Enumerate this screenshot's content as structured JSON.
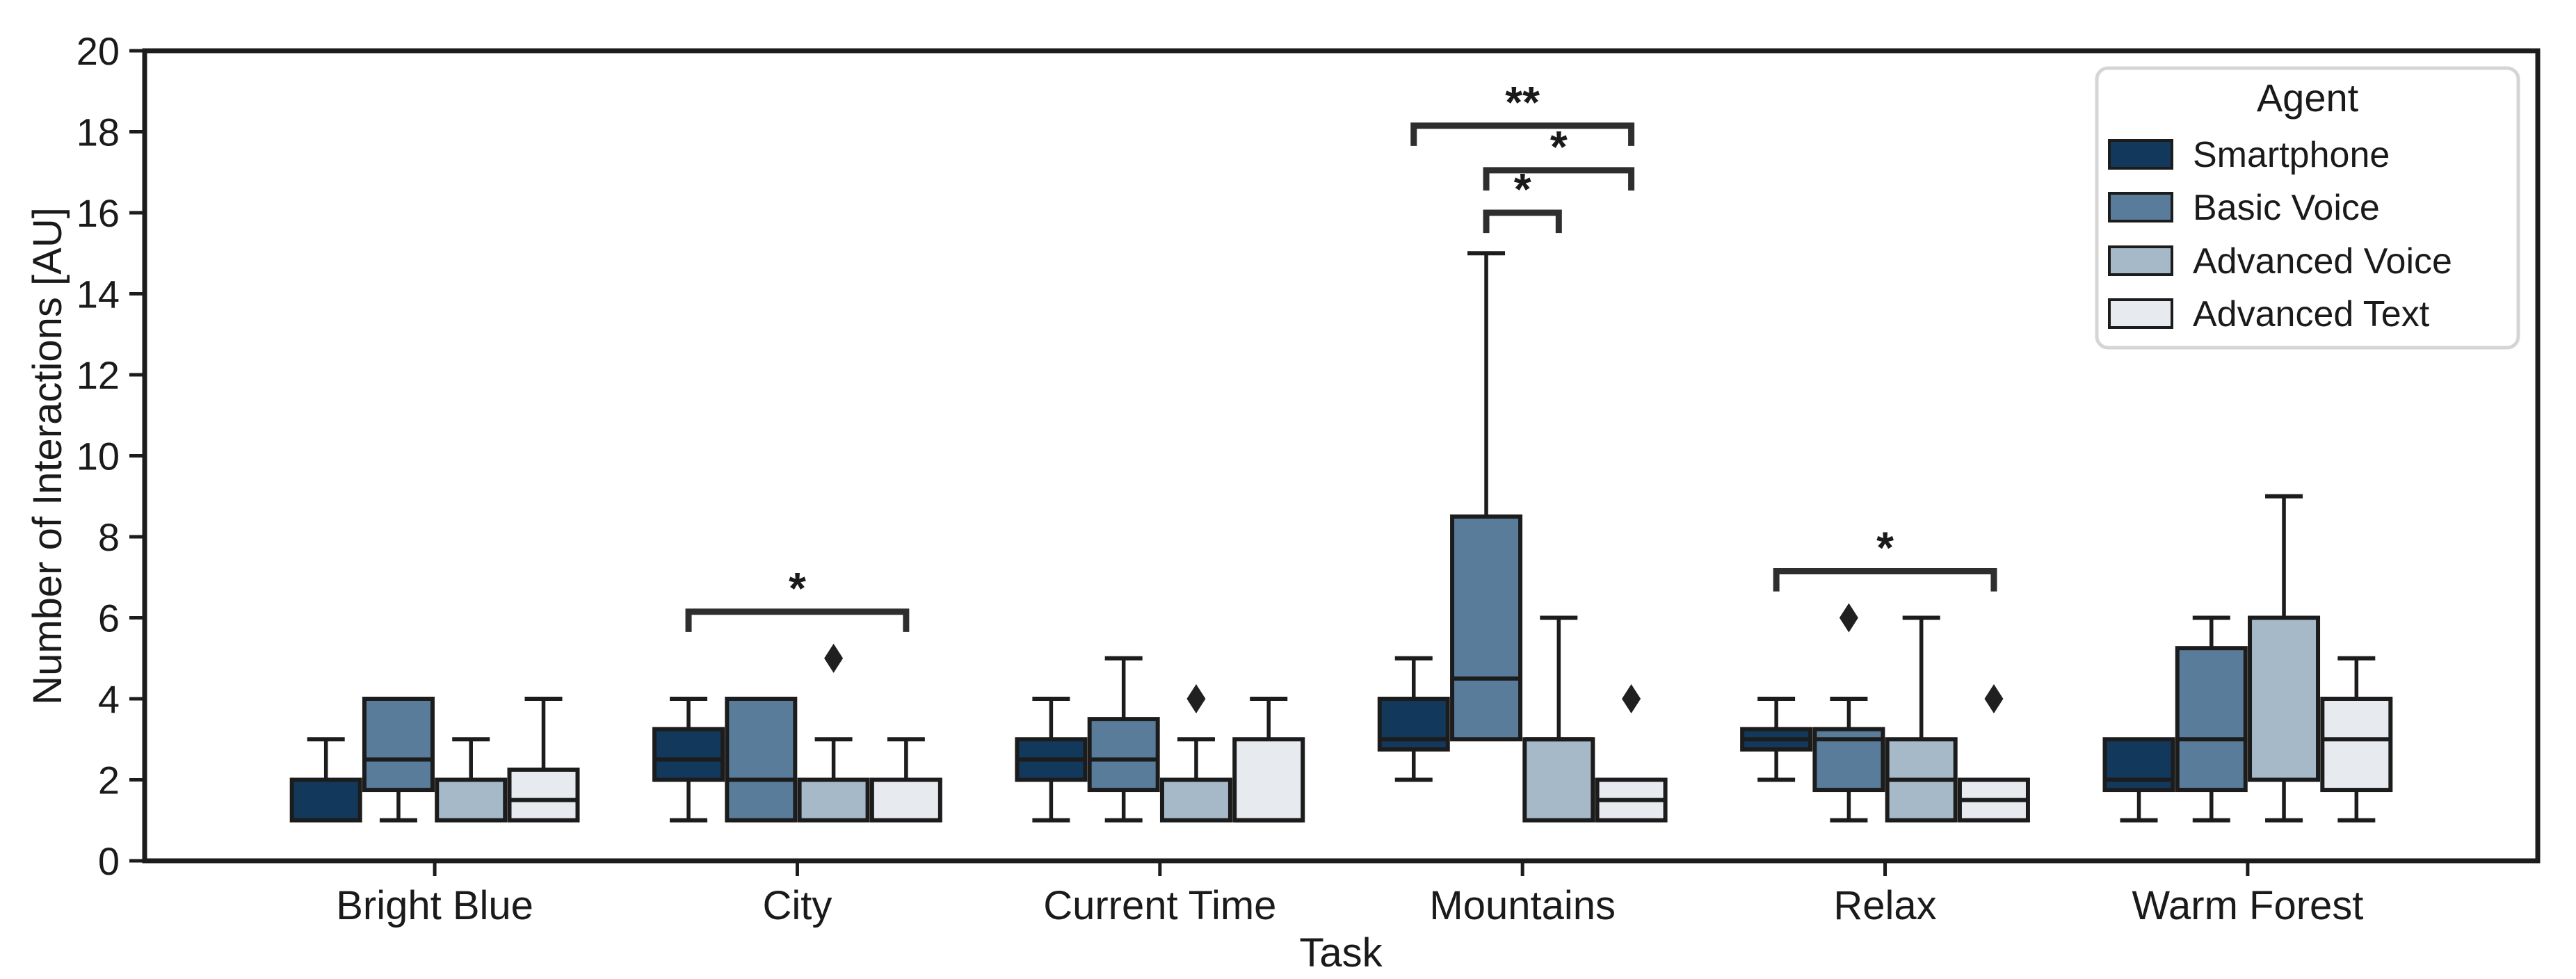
{
  "chart_data": {
    "type": "boxplot",
    "title": "",
    "xlabel": "Task",
    "ylabel": "Number of Interactions [AU]",
    "ylim": [
      0,
      20
    ],
    "yticks": [
      0,
      2,
      4,
      6,
      8,
      10,
      12,
      14,
      16,
      18,
      20
    ],
    "grid": false,
    "categories": [
      "Bright Blue",
      "City",
      "Current Time",
      "Mountains",
      "Relax",
      "Warm Forest"
    ],
    "legend": {
      "title": "Agent",
      "position": "upper right"
    },
    "series": [
      {
        "name": "Smartphone",
        "color": "#12395B",
        "boxes": [
          {
            "whislo": 1,
            "q1": 1,
            "med": 2,
            "q3": 2,
            "whishi": 3,
            "fliers": []
          },
          {
            "whislo": 1,
            "q1": 2,
            "med": 2.5,
            "q3": 3.25,
            "whishi": 4,
            "fliers": []
          },
          {
            "whislo": 1,
            "q1": 2,
            "med": 2.5,
            "q3": 3,
            "whishi": 4,
            "fliers": []
          },
          {
            "whislo": 2,
            "q1": 2.75,
            "med": 3,
            "q3": 4,
            "whishi": 5,
            "fliers": []
          },
          {
            "whislo": 2,
            "q1": 2.75,
            "med": 3,
            "q3": 3.25,
            "whishi": 4,
            "fliers": []
          },
          {
            "whislo": 1,
            "q1": 1.75,
            "med": 2,
            "q3": 3,
            "whishi": 3,
            "fliers": []
          }
        ]
      },
      {
        "name": "Basic Voice",
        "color": "#587C9A",
        "boxes": [
          {
            "whislo": 1,
            "q1": 1.75,
            "med": 2.5,
            "q3": 4,
            "whishi": 4,
            "fliers": []
          },
          {
            "whislo": 1,
            "q1": 1,
            "med": 2,
            "q3": 4,
            "whishi": 4,
            "fliers": []
          },
          {
            "whislo": 1,
            "q1": 1.75,
            "med": 2.5,
            "q3": 3.5,
            "whishi": 5,
            "fliers": []
          },
          {
            "whislo": 3,
            "q1": 3,
            "med": 4.5,
            "q3": 8.5,
            "whishi": 15,
            "fliers": []
          },
          {
            "whislo": 1,
            "q1": 1.75,
            "med": 3,
            "q3": 3.25,
            "whishi": 4,
            "fliers": [
              6
            ]
          },
          {
            "whislo": 1,
            "q1": 1.75,
            "med": 3,
            "q3": 5.25,
            "whishi": 6,
            "fliers": []
          }
        ]
      },
      {
        "name": "Advanced Voice",
        "color": "#A6B9C8",
        "boxes": [
          {
            "whislo": 1,
            "q1": 1,
            "med": 2,
            "q3": 2,
            "whishi": 3,
            "fliers": []
          },
          {
            "whislo": 1,
            "q1": 1,
            "med": 2,
            "q3": 2,
            "whishi": 3,
            "fliers": [
              5
            ]
          },
          {
            "whislo": 1,
            "q1": 1,
            "med": 2,
            "q3": 2,
            "whishi": 3,
            "fliers": [
              4
            ]
          },
          {
            "whislo": 1,
            "q1": 1,
            "med": 3,
            "q3": 3,
            "whishi": 6,
            "fliers": []
          },
          {
            "whislo": 1,
            "q1": 1,
            "med": 2,
            "q3": 3,
            "whishi": 6,
            "fliers": []
          },
          {
            "whislo": 1,
            "q1": 2,
            "med": 2,
            "q3": 6,
            "whishi": 9,
            "fliers": []
          }
        ]
      },
      {
        "name": "Advanced Text",
        "color": "#E7EAEE",
        "boxes": [
          {
            "whislo": 1,
            "q1": 1,
            "med": 1.5,
            "q3": 2.25,
            "whishi": 4,
            "fliers": []
          },
          {
            "whislo": 1,
            "q1": 1,
            "med": 2,
            "q3": 2,
            "whishi": 3,
            "fliers": []
          },
          {
            "whislo": 1,
            "q1": 1,
            "med": 1,
            "q3": 3,
            "whishi": 4,
            "fliers": []
          },
          {
            "whislo": 1,
            "q1": 1,
            "med": 1.5,
            "q3": 2,
            "whishi": 2,
            "fliers": [
              4
            ]
          },
          {
            "whislo": 1,
            "q1": 1,
            "med": 1.5,
            "q3": 2,
            "whishi": 2,
            "fliers": [
              4
            ]
          },
          {
            "whislo": 1,
            "q1": 1.75,
            "med": 3,
            "q3": 4,
            "whishi": 5,
            "fliers": []
          }
        ]
      }
    ],
    "significance_brackets": [
      {
        "category": "City",
        "from": "Smartphone",
        "to": "Advanced Text",
        "label": "*",
        "height": 6.15
      },
      {
        "category": "Mountains",
        "from": "Basic Voice",
        "to": "Advanced Voice",
        "label": "*",
        "height": 16.0
      },
      {
        "category": "Mountains",
        "from": "Basic Voice",
        "to": "Advanced Text",
        "label": "*",
        "height": 17.05
      },
      {
        "category": "Mountains",
        "from": "Smartphone",
        "to": "Advanced Text",
        "label": "**",
        "height": 18.15
      },
      {
        "category": "Relax",
        "from": "Smartphone",
        "to": "Advanced Text",
        "label": "*",
        "height": 7.15
      }
    ],
    "style": {
      "box_edge_color": "#1C1C1C",
      "bracket_color": "#2E2E2E",
      "flier_color": "#202020",
      "legend_border_color": "#D5D5D5"
    }
  }
}
